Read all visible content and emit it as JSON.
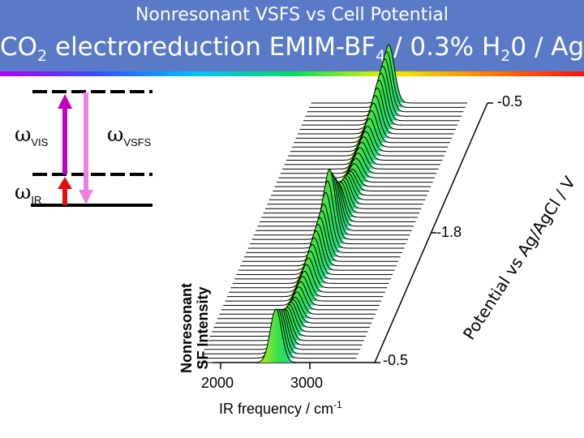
{
  "slide": {
    "subtitle": "Nonresonant VSFS vs Cell Potential",
    "title": {
      "prefix": "CO",
      "sub1": "2",
      "mid1": " electroreduction EMIM-BF",
      "sub2": "4",
      "mid2": " / 0.3% H",
      "sub3": "2",
      "suffix": "0 / Ag"
    }
  },
  "energy_diagram": {
    "omega": "ω",
    "vis_sub": "VIS",
    "vsfs_sub": "VSFS",
    "ir_sub": "IR",
    "colors": {
      "vis_arrow": "#c000c0",
      "ir_arrow": "#e01010",
      "vsfs_arrow": "#f080e0"
    }
  },
  "chart_data": {
    "type": "waterfall",
    "x_axis": {
      "label_text": "IR frequency / cm",
      "label_exp": "-1",
      "ticks": [
        "2000",
        "3000"
      ],
      "range": [
        1750,
        3500
      ]
    },
    "y_axis": {
      "label_line1": "Nonresonant",
      "label_line2": "SF Intensity"
    },
    "z_axis": {
      "label": "Potential vs Ag/AgCl / V",
      "ticks": [
        "-0.5",
        "-1.8",
        "-0.5"
      ]
    },
    "series_count": 60,
    "peak_center": 2620,
    "peak_width": 90,
    "amplitude_profile": [
      [
        0,
        0.55
      ],
      [
        5,
        0.32
      ],
      [
        10,
        0.22
      ],
      [
        15,
        0.26
      ],
      [
        20,
        0.38
      ],
      [
        25,
        0.5
      ],
      [
        28,
        0.72
      ],
      [
        33,
        0.34
      ],
      [
        40,
        0.18
      ],
      [
        48,
        0.26
      ],
      [
        54,
        0.46
      ],
      [
        59,
        0.6
      ]
    ]
  }
}
